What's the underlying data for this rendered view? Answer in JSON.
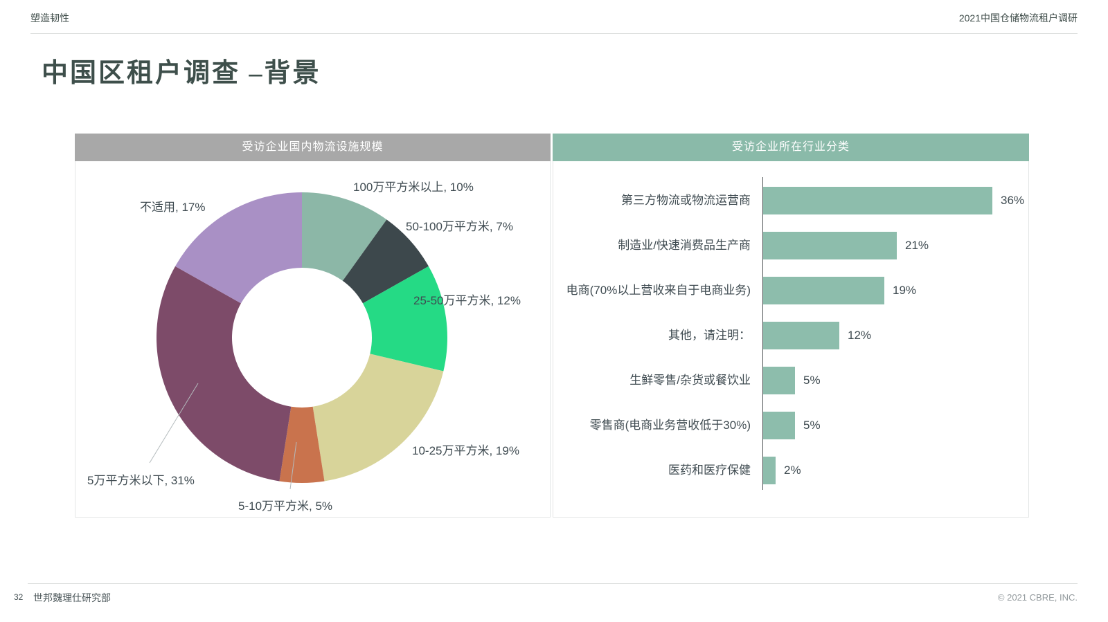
{
  "page": {
    "eyebrow": "塑造韧性",
    "header_right": "2021中国仓储物流租户调研",
    "title": "中国区租户调查 –背景",
    "footer_page_number": "32",
    "footer_left": "世邦魏理仕研究部",
    "footer_right": "© 2021 CBRE, INC."
  },
  "colors": {
    "header_gray": "#a8a8a8",
    "header_teal": "#8abaa9",
    "bar_teal": "#8dbdac",
    "axis_gray": "#4f5456",
    "title_color": "#3e4f4b",
    "label_color": "#3f4b51"
  },
  "chart_data": [
    {
      "type": "pie",
      "donut": true,
      "title": "受访企业国内物流设施规模",
      "labels": [
        "100万平方米以上",
        "50-100万平方米",
        "25-50万平方米",
        "10-25万平方米",
        "5-10万平方米",
        "5万平方米以下",
        "不适用"
      ],
      "values": [
        10,
        7,
        12,
        19,
        5,
        31,
        17
      ],
      "unit": "%",
      "colors": [
        "#8cb7a7",
        "#3d484c",
        "#25da85",
        "#d8d49a",
        "#c9734d",
        "#7d4b69",
        "#a990c5"
      ],
      "start_angle_deg": 0,
      "direction": "clockwise",
      "legend": "data-labels-around-donut"
    },
    {
      "type": "bar",
      "orientation": "horizontal",
      "title": "受访企业所在行业分类",
      "categories": [
        "第三方物流或物流运营商",
        "制造业/快速消费品生产商",
        "电商(70%以上营收来自于电商业务)",
        "其他，请注明：",
        "生鲜零售/杂货或餐饮业",
        "零售商(电商业务营收低于30%)",
        "医药和医疗保健"
      ],
      "values": [
        36,
        21,
        19,
        12,
        5,
        5,
        2
      ],
      "unit": "%",
      "bar_color": "#8dbdac",
      "value_labels": "right-of-bar",
      "grid": false
    }
  ]
}
